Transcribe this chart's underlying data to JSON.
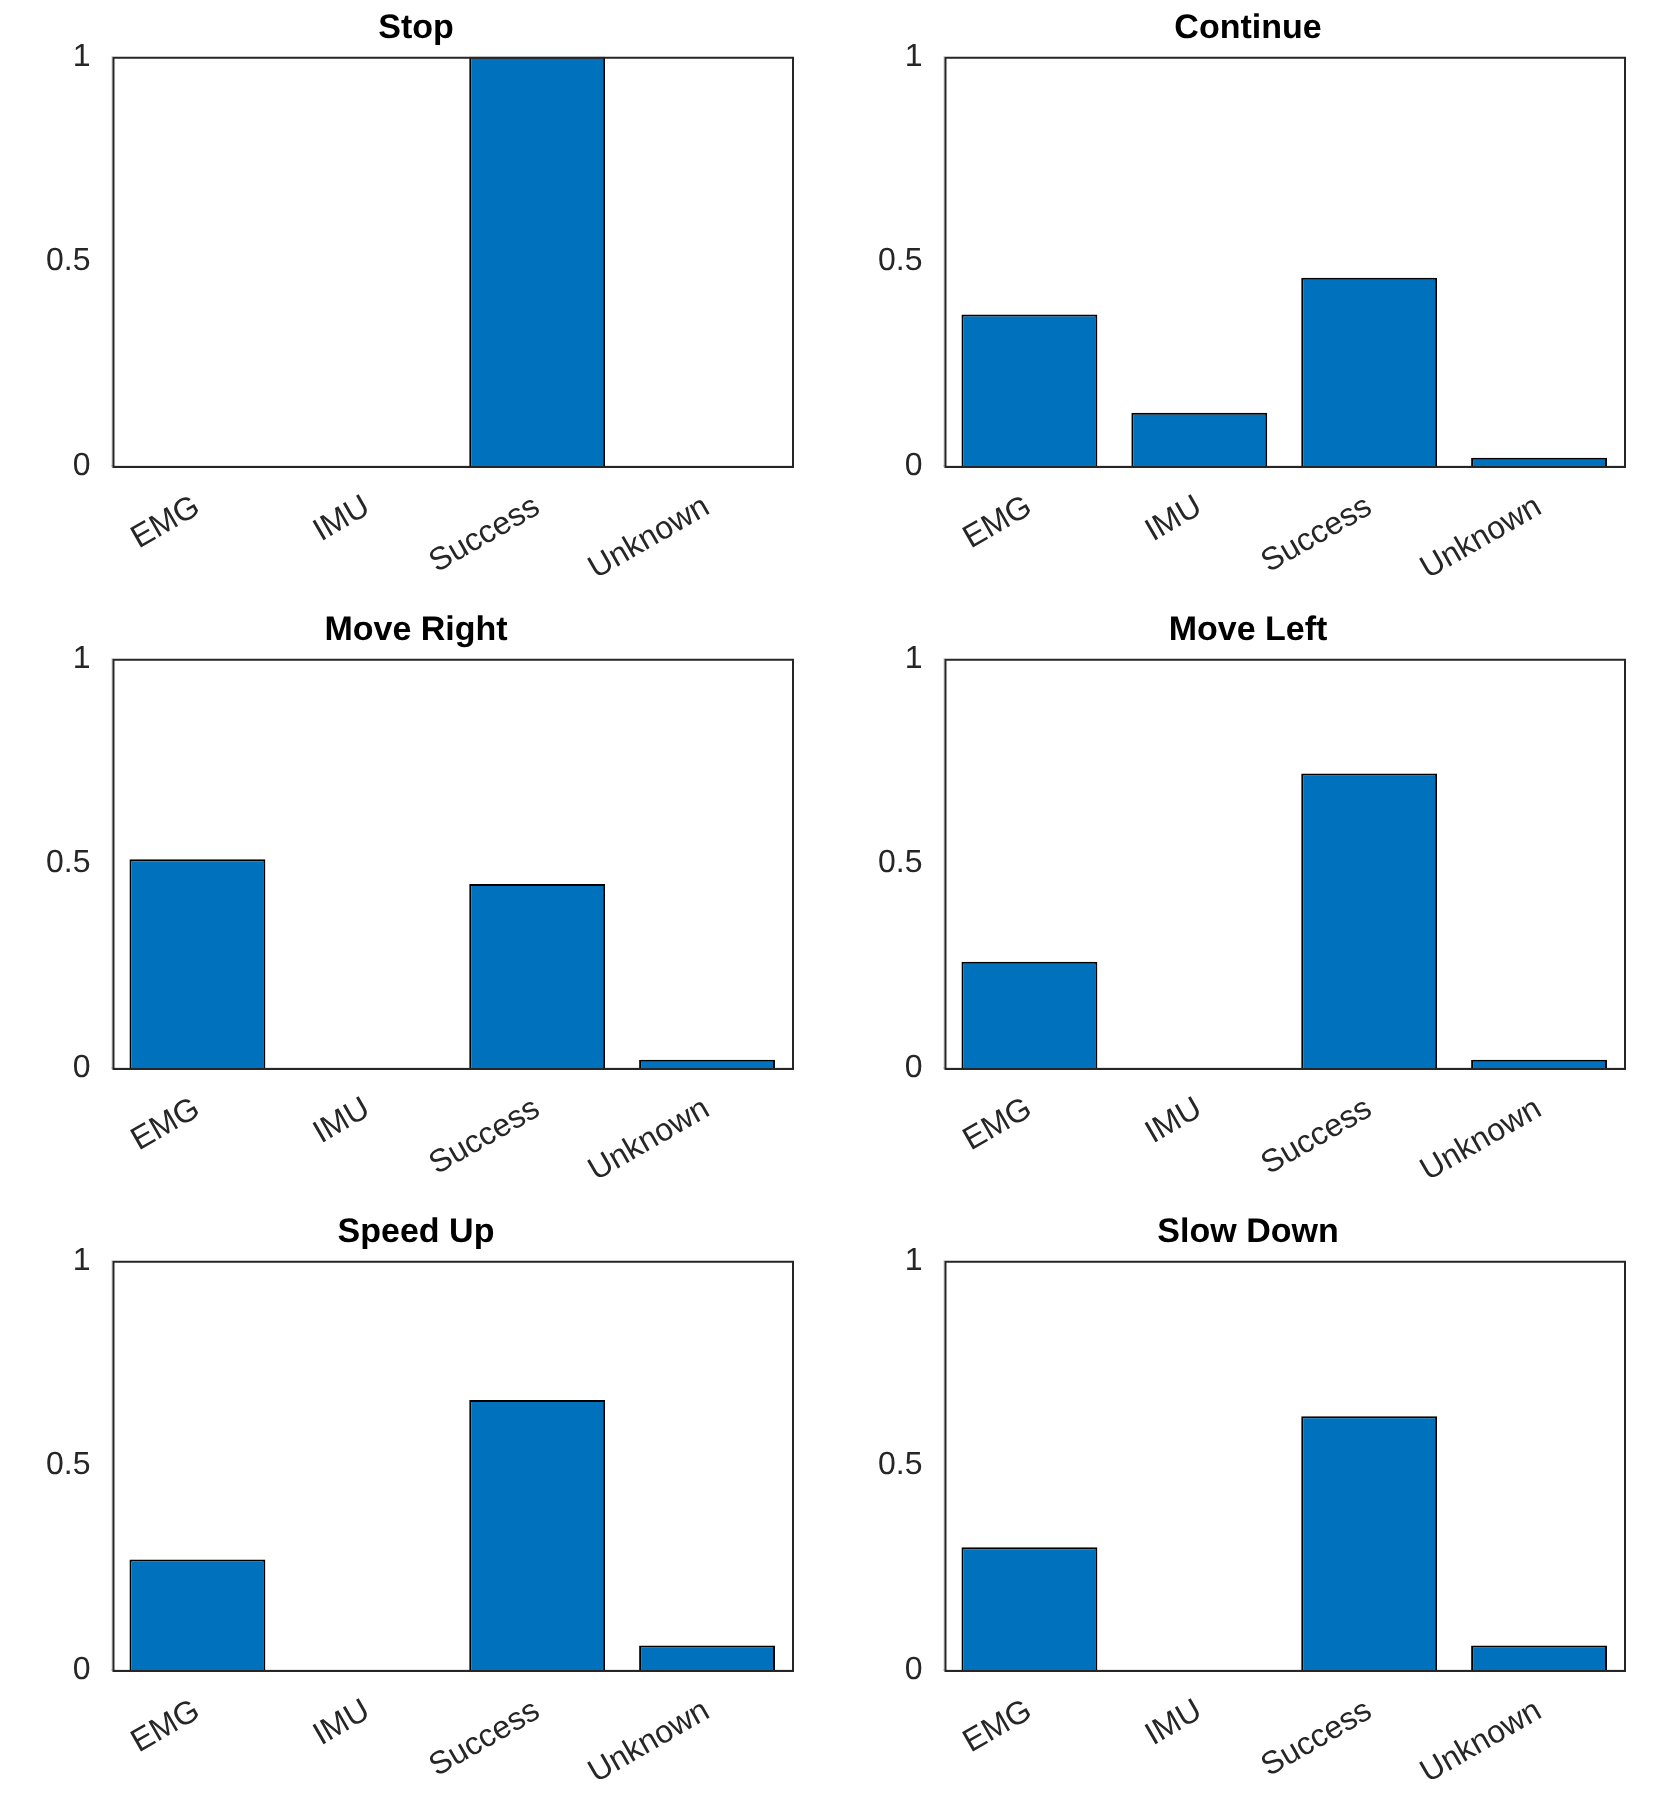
{
  "chart_data": [
    {
      "type": "bar",
      "title": "Stop",
      "categories": [
        "EMG",
        "IMU",
        "Success",
        "Unknown"
      ],
      "values": [
        0,
        0,
        1,
        0
      ],
      "color": "#0072bd",
      "ylim": [
        0,
        1
      ],
      "yticks": [
        0,
        0.5,
        1
      ],
      "grid": false
    },
    {
      "type": "bar",
      "title": "Continue",
      "categories": [
        "EMG",
        "IMU",
        "Success",
        "Unknown"
      ],
      "values": [
        0.37,
        0.13,
        0.46,
        0.02
      ],
      "color": "#0072bd",
      "ylim": [
        0,
        1
      ],
      "yticks": [
        0,
        0.5,
        1
      ],
      "grid": false
    },
    {
      "type": "bar",
      "title": "Move Right",
      "categories": [
        "EMG",
        "IMU",
        "Success",
        "Unknown"
      ],
      "values": [
        0.51,
        0,
        0.45,
        0.02
      ],
      "color": "#0072bd",
      "ylim": [
        0,
        1
      ],
      "yticks": [
        0,
        0.5,
        1
      ],
      "grid": false
    },
    {
      "type": "bar",
      "title": "Move Left",
      "categories": [
        "EMG",
        "IMU",
        "Success",
        "Unknown"
      ],
      "values": [
        0.26,
        0,
        0.72,
        0.02
      ],
      "color": "#0072bd",
      "ylim": [
        0,
        1
      ],
      "yticks": [
        0,
        0.5,
        1
      ],
      "grid": false
    },
    {
      "type": "bar",
      "title": "Speed Up",
      "categories": [
        "EMG",
        "IMU",
        "Success",
        "Unknown"
      ],
      "values": [
        0.27,
        0,
        0.66,
        0.06
      ],
      "color": "#0072bd",
      "ylim": [
        0,
        1
      ],
      "yticks": [
        0,
        0.5,
        1
      ],
      "grid": false
    },
    {
      "type": "bar",
      "title": "Slow Down",
      "categories": [
        "EMG",
        "IMU",
        "Success",
        "Unknown"
      ],
      "values": [
        0.3,
        0,
        0.62,
        0.06
      ],
      "color": "#0072bd",
      "ylim": [
        0,
        1
      ],
      "yticks": [
        0,
        0.5,
        1
      ],
      "grid": false
    }
  ]
}
